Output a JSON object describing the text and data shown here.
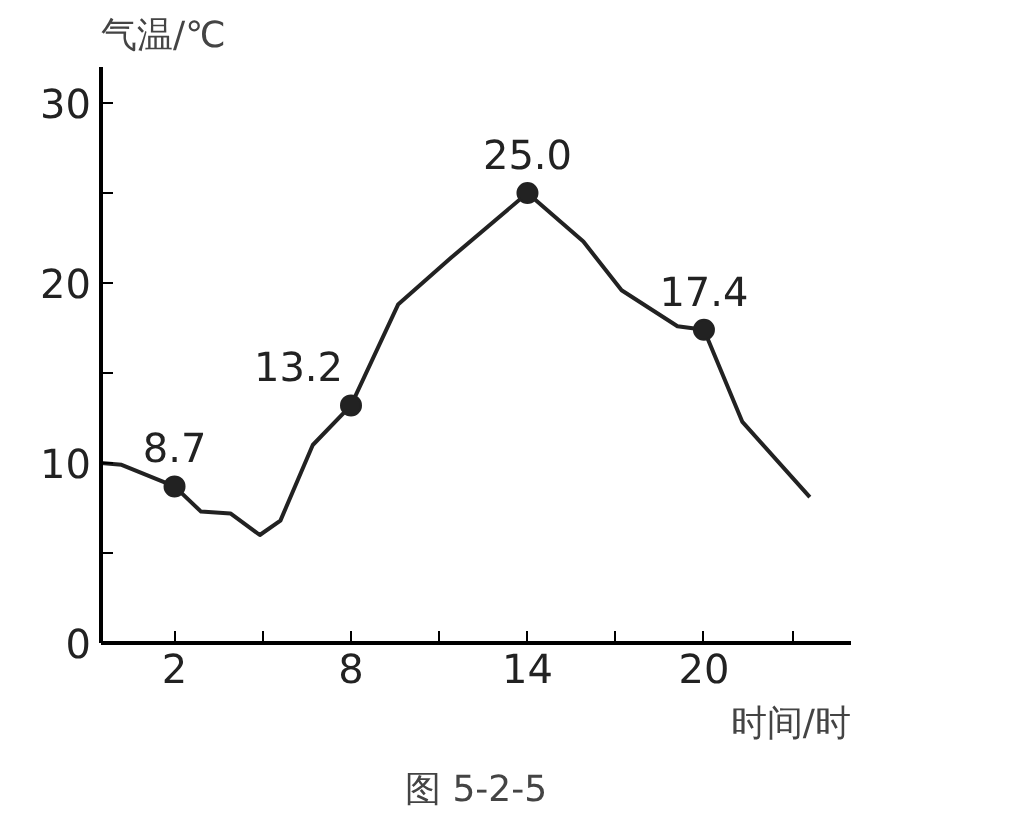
{
  "chart_data": {
    "type": "line",
    "ylabel": "气温/℃",
    "xlabel": "时间/时",
    "annotations": [
      "图 5-2-5"
    ],
    "xlim": [
      -0.5,
      25
    ],
    "ylim": [
      0,
      32
    ],
    "xticks": [
      2,
      {
        "value": 5,
        "label": null
      },
      8,
      {
        "value": 11,
        "label": null
      },
      14,
      {
        "value": 17,
        "label": null
      },
      20,
      {
        "value": 23,
        "label": null
      }
    ],
    "yticks": [
      0,
      {
        "value": 5,
        "label": null
      },
      10,
      {
        "value": 15,
        "label": null
      },
      20,
      {
        "value": 25,
        "label": null
      },
      30
    ],
    "grid": false,
    "line_style": "solid",
    "series": [
      {
        "color": "#222222",
        "marker": "none",
        "x": [
          -0.5,
          0.2,
          2,
          2.9,
          3.9,
          4.9,
          5.6,
          6.7,
          8,
          9.6,
          11.4,
          14,
          15.9,
          17.2,
          19.1,
          20,
          21.3,
          23.6
        ],
        "values": [
          10.0,
          9.9,
          8.7,
          7.3,
          7.2,
          6.0,
          6.8,
          11.0,
          13.2,
          18.8,
          21.4,
          25.0,
          22.3,
          19.6,
          17.6,
          17.4,
          12.3,
          8.1
        ]
      },
      {
        "type": "scatter",
        "color": "#222222",
        "marker": "circle",
        "x": [
          2,
          8,
          14,
          20
        ],
        "values": [
          8.7,
          13.2,
          25.0,
          17.4
        ],
        "value_labels": [
          "8.7",
          "13.2",
          "25.0",
          "17.4"
        ]
      }
    ]
  }
}
